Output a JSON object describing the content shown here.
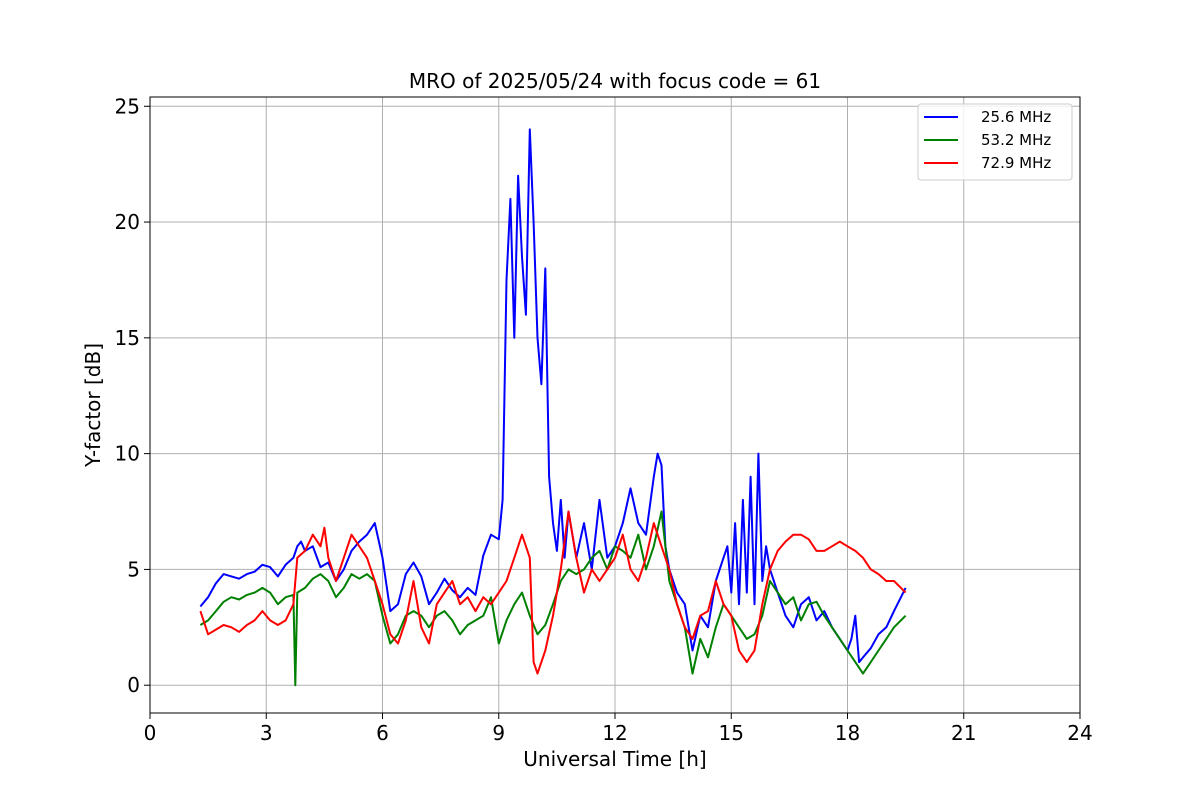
{
  "chart_data": {
    "type": "line",
    "title": "MRO of 2025/05/24 with focus code = 61",
    "xlabel": "Universal Time [h]",
    "ylabel": "Y-factor [dB]",
    "xlim": [
      0,
      24
    ],
    "ylim": [
      -1.2,
      25.4
    ],
    "xticks": [
      0,
      3,
      6,
      9,
      12,
      15,
      18,
      21,
      24
    ],
    "yticks": [
      0,
      5,
      10,
      15,
      20,
      25
    ],
    "grid": true,
    "legend_position": "top-right",
    "series": [
      {
        "name": "25.6 MHz",
        "color": "#0000ff",
        "x": [
          1.3,
          1.5,
          1.7,
          1.9,
          2.1,
          2.3,
          2.5,
          2.7,
          2.9,
          3.1,
          3.3,
          3.5,
          3.7,
          3.8,
          3.9,
          4.0,
          4.2,
          4.4,
          4.6,
          4.8,
          5.0,
          5.2,
          5.4,
          5.6,
          5.8,
          6.0,
          6.2,
          6.4,
          6.6,
          6.8,
          7.0,
          7.2,
          7.4,
          7.6,
          7.8,
          8.0,
          8.2,
          8.4,
          8.6,
          8.8,
          9.0,
          9.1,
          9.2,
          9.3,
          9.4,
          9.5,
          9.6,
          9.7,
          9.8,
          9.9,
          10.0,
          10.1,
          10.2,
          10.3,
          10.4,
          10.5,
          10.6,
          10.7,
          10.8,
          10.9,
          11.0,
          11.2,
          11.4,
          11.6,
          11.8,
          12.0,
          12.2,
          12.4,
          12.6,
          12.8,
          13.0,
          13.1,
          13.2,
          13.3,
          13.4,
          13.6,
          13.8,
          14.0,
          14.2,
          14.4,
          14.6,
          14.8,
          14.9,
          15.0,
          15.1,
          15.2,
          15.3,
          15.4,
          15.5,
          15.6,
          15.7,
          15.8,
          15.9,
          16.0,
          16.2,
          16.4,
          16.6,
          16.8,
          17.0,
          17.2,
          17.4,
          17.6,
          17.8,
          18.0,
          18.1,
          18.2,
          18.3,
          18.4,
          18.6,
          18.8,
          19.0,
          19.2,
          19.5
        ],
        "y": [
          3.4,
          3.8,
          4.4,
          4.8,
          4.7,
          4.6,
          4.8,
          4.9,
          5.2,
          5.1,
          4.7,
          5.2,
          5.5,
          6.0,
          6.2,
          5.8,
          6.0,
          5.1,
          5.3,
          4.5,
          5.0,
          5.8,
          6.2,
          6.5,
          7.0,
          5.5,
          3.2,
          3.5,
          4.8,
          5.3,
          4.7,
          3.5,
          4.0,
          4.6,
          4.1,
          3.8,
          4.2,
          3.9,
          5.6,
          6.5,
          6.3,
          8.0,
          17.5,
          21.0,
          15.0,
          22.0,
          18.5,
          16.0,
          24.0,
          20.0,
          15.0,
          13.0,
          18.0,
          9.0,
          7.0,
          5.8,
          8.0,
          5.5,
          7.5,
          6.5,
          5.5,
          7.0,
          5.0,
          8.0,
          5.5,
          6.0,
          7.0,
          8.5,
          7.0,
          6.5,
          9.0,
          10.0,
          9.5,
          6.0,
          5.0,
          4.0,
          3.5,
          1.5,
          3.0,
          2.5,
          4.5,
          5.5,
          6.0,
          4.0,
          7.0,
          3.5,
          8.0,
          4.0,
          9.0,
          3.5,
          10.0,
          4.5,
          6.0,
          5.0,
          4.0,
          3.0,
          2.5,
          3.5,
          3.8,
          2.8,
          3.2,
          2.5,
          2.0,
          1.5,
          2.0,
          3.0,
          1.0,
          1.2,
          1.6,
          2.2,
          2.5,
          3.2,
          4.2
        ]
      },
      {
        "name": "53.2 MHz",
        "color": "#008000",
        "x": [
          1.3,
          1.5,
          1.7,
          1.9,
          2.1,
          2.3,
          2.5,
          2.7,
          2.9,
          3.1,
          3.3,
          3.5,
          3.7,
          3.75,
          3.8,
          4.0,
          4.2,
          4.4,
          4.6,
          4.8,
          5.0,
          5.2,
          5.4,
          5.6,
          5.8,
          6.0,
          6.2,
          6.4,
          6.6,
          6.8,
          7.0,
          7.2,
          7.4,
          7.6,
          7.8,
          8.0,
          8.2,
          8.4,
          8.6,
          8.8,
          9.0,
          9.2,
          9.4,
          9.6,
          9.8,
          10.0,
          10.2,
          10.4,
          10.6,
          10.8,
          11.0,
          11.2,
          11.4,
          11.6,
          11.8,
          12.0,
          12.2,
          12.4,
          12.6,
          12.8,
          13.0,
          13.2,
          13.4,
          13.6,
          13.8,
          14.0,
          14.2,
          14.4,
          14.6,
          14.8,
          15.0,
          15.2,
          15.4,
          15.6,
          15.8,
          16.0,
          16.2,
          16.4,
          16.6,
          16.8,
          17.0,
          17.2,
          17.4,
          17.6,
          17.8,
          18.0,
          18.2,
          18.4,
          18.6,
          18.8,
          19.0,
          19.2,
          19.5
        ],
        "y": [
          2.6,
          2.8,
          3.2,
          3.6,
          3.8,
          3.7,
          3.9,
          4.0,
          4.2,
          4.0,
          3.5,
          3.8,
          3.9,
          0.0,
          4.0,
          4.2,
          4.6,
          4.8,
          4.5,
          3.8,
          4.2,
          4.8,
          4.6,
          4.8,
          4.5,
          3.0,
          1.8,
          2.2,
          3.0,
          3.2,
          3.0,
          2.5,
          3.0,
          3.2,
          2.8,
          2.2,
          2.6,
          2.8,
          3.0,
          3.8,
          1.8,
          2.8,
          3.5,
          4.0,
          3.0,
          2.2,
          2.6,
          3.5,
          4.5,
          5.0,
          4.8,
          5.0,
          5.5,
          5.8,
          5.0,
          6.0,
          5.8,
          5.5,
          6.5,
          5.0,
          6.0,
          7.5,
          4.5,
          3.5,
          2.5,
          0.5,
          2.0,
          1.2,
          2.5,
          3.5,
          3.0,
          2.5,
          2.0,
          2.2,
          3.0,
          4.5,
          4.0,
          3.5,
          3.8,
          2.8,
          3.5,
          3.6,
          3.0,
          2.5,
          2.0,
          1.5,
          1.0,
          0.5,
          1.0,
          1.5,
          2.0,
          2.5,
          3.0
        ]
      },
      {
        "name": "72.9 MHz",
        "color": "#ff0000",
        "x": [
          1.3,
          1.5,
          1.7,
          1.9,
          2.1,
          2.3,
          2.5,
          2.7,
          2.9,
          3.1,
          3.3,
          3.5,
          3.7,
          3.8,
          4.0,
          4.2,
          4.4,
          4.5,
          4.6,
          4.8,
          5.0,
          5.2,
          5.4,
          5.6,
          5.8,
          6.0,
          6.2,
          6.4,
          6.6,
          6.8,
          7.0,
          7.2,
          7.4,
          7.6,
          7.8,
          8.0,
          8.2,
          8.4,
          8.6,
          8.8,
          9.0,
          9.2,
          9.4,
          9.6,
          9.8,
          9.9,
          10.0,
          10.2,
          10.4,
          10.6,
          10.8,
          11.0,
          11.2,
          11.4,
          11.6,
          11.8,
          12.0,
          12.2,
          12.4,
          12.6,
          12.8,
          13.0,
          13.2,
          13.4,
          13.6,
          13.8,
          14.0,
          14.2,
          14.4,
          14.6,
          14.8,
          15.0,
          15.2,
          15.4,
          15.6,
          15.8,
          16.0,
          16.2,
          16.4,
          16.6,
          16.8,
          17.0,
          17.2,
          17.4,
          17.6,
          17.8,
          18.0,
          18.2,
          18.4,
          18.6,
          18.8,
          19.0,
          19.2,
          19.5
        ],
        "y": [
          3.2,
          2.2,
          2.4,
          2.6,
          2.5,
          2.3,
          2.6,
          2.8,
          3.2,
          2.8,
          2.6,
          2.8,
          3.5,
          5.5,
          5.8,
          6.5,
          6.0,
          6.8,
          5.5,
          4.5,
          5.5,
          6.5,
          6.0,
          5.5,
          4.5,
          3.5,
          2.2,
          1.8,
          2.8,
          4.5,
          2.5,
          1.8,
          3.5,
          4.0,
          4.5,
          3.5,
          3.8,
          3.2,
          3.8,
          3.5,
          4.0,
          4.5,
          5.5,
          6.5,
          5.5,
          1.0,
          0.5,
          1.5,
          3.0,
          5.0,
          7.5,
          5.5,
          4.0,
          5.0,
          4.5,
          5.0,
          5.5,
          6.5,
          5.0,
          4.5,
          5.5,
          7.0,
          6.0,
          5.0,
          3.5,
          2.5,
          2.0,
          3.0,
          3.2,
          4.5,
          3.5,
          3.0,
          1.5,
          1.0,
          1.5,
          3.5,
          5.0,
          5.8,
          6.2,
          6.5,
          6.5,
          6.3,
          5.8,
          5.8,
          6.0,
          6.2,
          6.0,
          5.8,
          5.5,
          5.0,
          4.8,
          4.5,
          4.5,
          4.0
        ]
      }
    ]
  }
}
